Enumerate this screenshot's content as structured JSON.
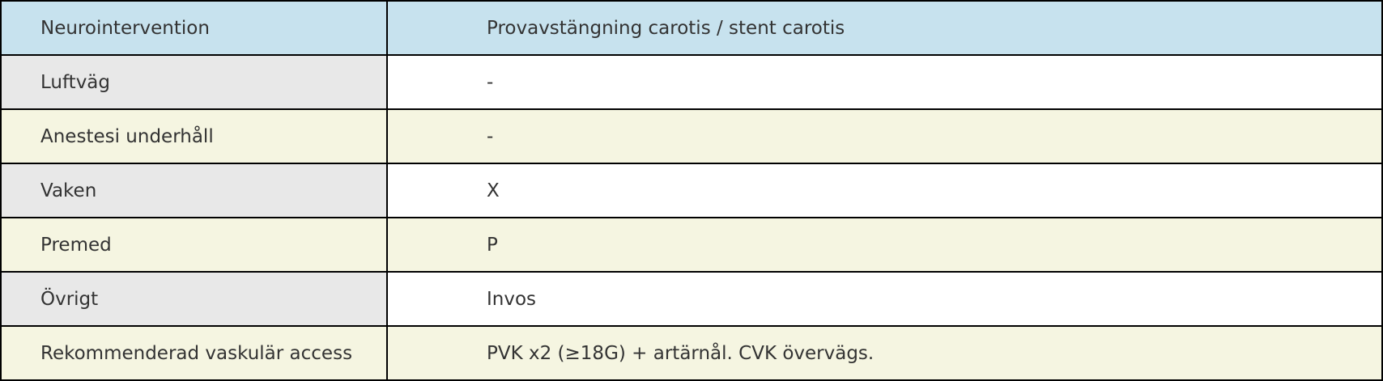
{
  "table": {
    "header": {
      "label": "Neurointervention",
      "value": "Provavstängning carotis / stent carotis"
    },
    "rows": [
      {
        "label": "Luftväg",
        "value": "-"
      },
      {
        "label": "Anestesi underhåll",
        "value": "-"
      },
      {
        "label": "Vaken",
        "value": "X"
      },
      {
        "label": "Premed",
        "value": "P"
      },
      {
        "label": "Övrigt",
        "value": "Invos"
      },
      {
        "label": "Rekommenderad vaskulär access",
        "value": "PVK x2 (≥18G) + artärnål. CVK övervägs."
      }
    ]
  },
  "colors": {
    "header_bg": "#c7e2ee",
    "label_bg": "#e8e8e8",
    "alt_row_bg": "#f5f5e1"
  }
}
